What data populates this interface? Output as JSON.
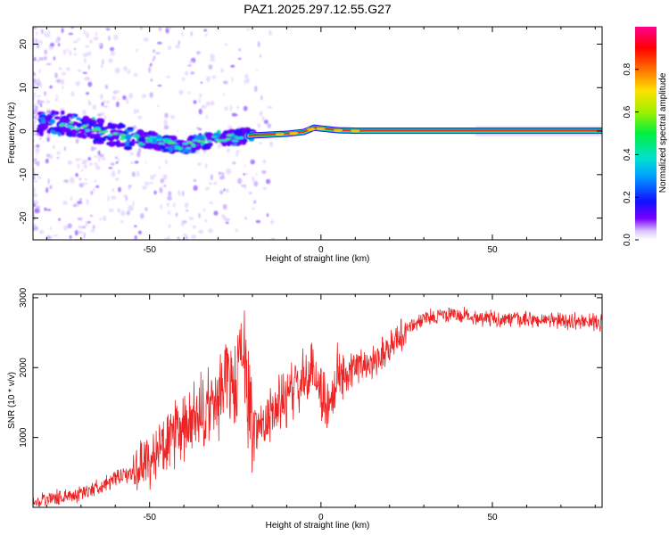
{
  "title": "PAZ1.2025.297.12.55.G27",
  "chart_data": [
    {
      "type": "heatmap",
      "name": "spectrogram",
      "xlabel": "Height of straight line (km)",
      "ylabel": "Frequency (Hz)",
      "xlim": [
        -84,
        82
      ],
      "ylim": [
        -25,
        24
      ],
      "xticks": [
        -50,
        0,
        50
      ],
      "xtick_labels": [
        "-50",
        "0",
        "50"
      ],
      "yticks": [
        -20,
        -10,
        0,
        10,
        20
      ],
      "ytick_labels": [
        "-20",
        "-10",
        "0",
        "10",
        "20"
      ],
      "trend": {
        "x": [
          -84,
          -75,
          -70,
          -65,
          -60,
          -55,
          -50,
          -45,
          -40,
          -35,
          -30,
          -25,
          -20,
          -15,
          -10,
          -5,
          -2,
          0,
          5,
          10,
          20,
          40,
          60,
          82
        ],
        "y": [
          2.0,
          1.8,
          1.0,
          0.0,
          -1.0,
          -1.5,
          -2.0,
          -3.0,
          -3.5,
          -2.5,
          -1.5,
          -1.5,
          -1.0,
          -0.8,
          -0.6,
          -0.2,
          0.8,
          0.6,
          0.2,
          0.1,
          0.1,
          0.1,
          0.1,
          0.1
        ]
      },
      "colorbar": {
        "label": "Normalized spectral amplitude",
        "range": [
          0,
          1
        ],
        "ticks": [
          0.0,
          0.2,
          0.4,
          0.6,
          0.8
        ],
        "tick_labels": [
          "0.0",
          "0.2",
          "0.4",
          "0.6",
          "0.8"
        ]
      }
    },
    {
      "type": "line",
      "name": "snr",
      "xlabel": "Height of straight line (km)",
      "ylabel": "SNR (10 * v/v)",
      "xlim": [
        -84,
        82
      ],
      "ylim": [
        0,
        3050
      ],
      "xticks": [
        -50,
        0,
        50
      ],
      "xtick_labels": [
        "-50",
        "0",
        "50"
      ],
      "yticks": [
        1000,
        2000,
        3000
      ],
      "ytick_labels": [
        "1000",
        "2000",
        "3000"
      ],
      "color": "#ee2222",
      "series": [
        {
          "name": "SNR",
          "x": [
            -84,
            -75,
            -70,
            -65,
            -60,
            -55,
            -50,
            -45,
            -40,
            -35,
            -30,
            -28,
            -25,
            -23,
            -20,
            -15,
            -10,
            -5,
            -2,
            0,
            2,
            5,
            10,
            15,
            20,
            25,
            30,
            35,
            40,
            50,
            60,
            70,
            82
          ],
          "y": [
            100,
            150,
            200,
            300,
            400,
            500,
            700,
            900,
            1100,
            1300,
            1500,
            2000,
            1600,
            2400,
            1100,
            1300,
            1600,
            1800,
            1950,
            1700,
            1400,
            1900,
            2000,
            2100,
            2300,
            2550,
            2700,
            2750,
            2750,
            2700,
            2680,
            2670,
            2650
          ]
        }
      ]
    }
  ]
}
